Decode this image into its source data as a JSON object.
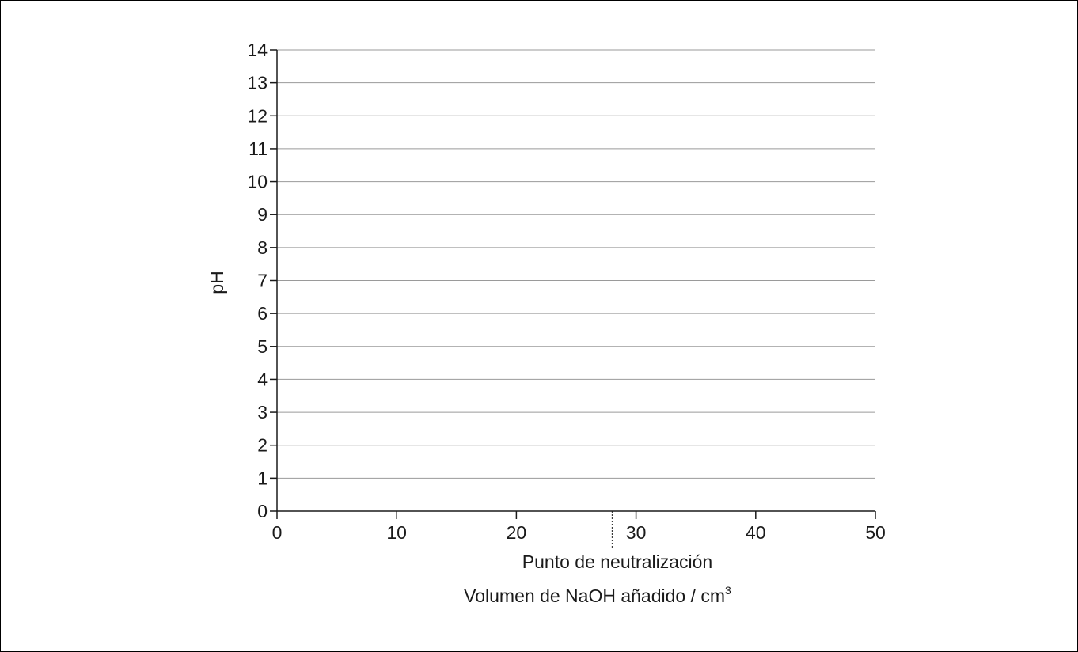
{
  "chart_data": {
    "type": "line",
    "title": "",
    "xlabel": "Volumen de NaOH añadido / cm",
    "xlabel_superscript": "3",
    "ylabel": "pH",
    "xlim": [
      0,
      50
    ],
    "ylim": [
      0,
      14
    ],
    "x_ticks": [
      0,
      10,
      20,
      30,
      40,
      50
    ],
    "y_ticks": [
      0,
      1,
      2,
      3,
      4,
      5,
      6,
      7,
      8,
      9,
      10,
      11,
      12,
      13,
      14
    ],
    "grid": "horizontal",
    "series": [],
    "annotations": [
      {
        "text": "Punto de neutralización",
        "x": 28
      }
    ],
    "colors": {
      "axis": "#1a1a1a",
      "grid": "#9a9a9a",
      "text": "#1a1a1a"
    }
  }
}
